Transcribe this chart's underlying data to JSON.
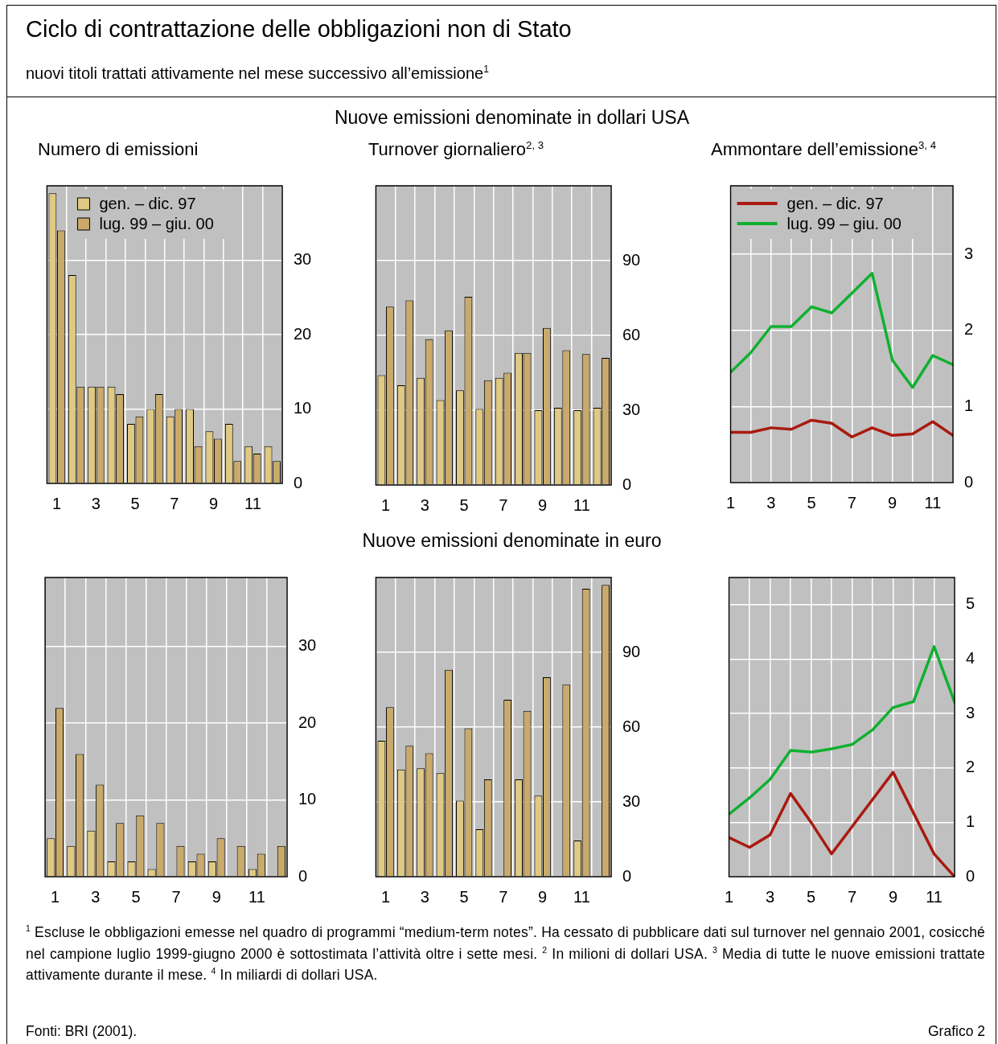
{
  "chart_data": [
    {
      "type": "other",
      "title": "Ciclo di contrattazione delle obbligazioni non di Stato",
      "subtitle": "nuovi titoli trattati attivamente nel mese successivo all’emissione$^{1}$",
      "annotations": [
        "Nuove emissioni denominate in dollari USA",
        "Nuove emissioni denominate in euro",
        "$^{1}$ Escluse le obbligazioni emesse nel quadro di programmi “medium-term notes”. Ha cessato di pubblicare dati sul turnover nel gennaio 2001, cosicché nel campione luglio 1999-giugno 2000 è sottostimata l’attività oltre i sette mesi. $^{2}$ In milioni di dollari USA. $^{3}$ Media di tutte le nuove emissioni trattate attivamente durante il mese. $^{4}$ In miliardi di dollari USA.",
        "Fonti: BRI (2001).",
        "Grafico 2"
      ]
    },
    {
      "type": "bar",
      "title": "Numero di emissioni",
      "categories": [
        "1",
        null,
        "3",
        null,
        "5",
        null,
        "7",
        null,
        "9",
        null,
        "11",
        null
      ],
      "series": [
        {
          "name": "gen. – dic. 97",
          "color": "#e0c982",
          "values": [
            39,
            28,
            13,
            13,
            8,
            10,
            9,
            10,
            7,
            8,
            5,
            5
          ]
        },
        {
          "name": "lug. 99 – giu. 00",
          "color": "#c9aa6b",
          "values": [
            34,
            13,
            13,
            12,
            9,
            12,
            10,
            5,
            6,
            3,
            4,
            3
          ]
        }
      ],
      "ylim": [
        0,
        40
      ],
      "yticks": [
        0,
        10,
        20,
        30
      ],
      "grid": true,
      "legend": "top left"
    },
    {
      "type": "bar",
      "title": "Turnover giornaliero$^{2, 3}$",
      "categories": [
        "1",
        null,
        "3",
        null,
        "5",
        null,
        "7",
        null,
        "9",
        null,
        "11",
        null
      ],
      "series": [
        {
          "color": "#e0c982",
          "values": [
            44,
            40,
            43,
            34,
            38,
            30.5,
            43,
            53,
            30,
            31,
            30,
            31
          ]
        },
        {
          "color": "#c9aa6b",
          "values": [
            71.5,
            74,
            58.5,
            62,
            75.5,
            42,
            45,
            53,
            63,
            54,
            52.5,
            51
          ]
        }
      ],
      "ylim": [
        0,
        120
      ],
      "yticks": [
        0,
        30,
        60,
        90
      ],
      "grid": true
    },
    {
      "type": "line",
      "title": "Ammontare dell’emissione$^{3, 4}$",
      "x": [
        1,
        2,
        3,
        4,
        5,
        6,
        7,
        8,
        9,
        10,
        11,
        12
      ],
      "series": [
        {
          "name": "gen. – dic. 97",
          "color": "#a91a10",
          "values": [
            0.66,
            0.66,
            0.72,
            0.7,
            0.82,
            0.78,
            0.6,
            0.72,
            0.62,
            0.64,
            0.8,
            0.62
          ]
        },
        {
          "name": "lug. 99 – giu. 00",
          "color": "#10b030",
          "values": [
            1.45,
            1.71,
            2.05,
            2.05,
            2.31,
            2.23,
            2.49,
            2.75,
            1.61,
            1.25,
            1.67,
            1.55
          ]
        }
      ],
      "xlim": [
        1,
        12
      ],
      "xticks": [
        1,
        {
          "value": 2,
          "label": null
        },
        3,
        {
          "value": 4,
          "label": null
        },
        5,
        {
          "value": 6,
          "label": null
        },
        7,
        {
          "value": 8,
          "label": null
        },
        9,
        {
          "value": 10,
          "label": null
        },
        11,
        {
          "value": 12,
          "label": null
        }
      ],
      "ylim": [
        0,
        3.9
      ],
      "yticks": [
        0,
        1,
        2,
        3
      ],
      "grid": true,
      "legend": "top left"
    },
    {
      "type": "bar",
      "categories": [
        "1",
        null,
        "3",
        null,
        "5",
        null,
        "7",
        null,
        "9",
        null,
        "11",
        null
      ],
      "series": [
        {
          "color": "#e0c982",
          "values": [
            5,
            4,
            6,
            2,
            2,
            1,
            0,
            2,
            2,
            0,
            1,
            0
          ]
        },
        {
          "color": "#c9aa6b",
          "values": [
            22,
            16,
            12,
            7,
            8,
            7,
            4,
            3,
            5,
            4,
            3,
            4
          ]
        }
      ],
      "ylim": [
        0,
        39
      ],
      "yticks": [
        0,
        10,
        20,
        30
      ],
      "grid": true
    },
    {
      "type": "bar",
      "categories": [
        "1",
        null,
        "3",
        null,
        "5",
        null,
        "7",
        null,
        "9",
        null,
        "11",
        null
      ],
      "series": [
        {
          "color": "#e0c982",
          "values": [
            54.5,
            43,
            43.5,
            41.5,
            30.5,
            19,
            0,
            39,
            32.5,
            0,
            14.5,
            0
          ]
        },
        {
          "color": "#c9aa6b",
          "values": [
            68,
            52.5,
            49.5,
            83,
            59.5,
            39,
            71,
            66.5,
            80,
            77,
            115.5,
            117
          ]
        }
      ],
      "ylim": [
        0,
        120
      ],
      "yticks": [
        0,
        30,
        60,
        90
      ],
      "grid": true
    },
    {
      "type": "line",
      "x": [
        1,
        2,
        3,
        4,
        5,
        6,
        7,
        8,
        9,
        10,
        11,
        12
      ],
      "series": [
        {
          "color": "#a91a10",
          "values": [
            0.72,
            0.54,
            0.77,
            1.53,
            1,
            0.42,
            0.92,
            1.42,
            1.92,
            1.17,
            0.42,
            0
          ]
        },
        {
          "color": "#10b030",
          "values": [
            1.15,
            1.45,
            1.79,
            2.32,
            2.29,
            2.35,
            2.43,
            2.7,
            3.11,
            3.22,
            4.23,
            3.21
          ]
        }
      ],
      "xlim": [
        1,
        12
      ],
      "xticks": [
        1,
        {
          "value": 2,
          "label": null
        },
        3,
        {
          "value": 4,
          "label": null
        },
        5,
        {
          "value": 6,
          "label": null
        },
        7,
        {
          "value": 8,
          "label": null
        },
        9,
        {
          "value": 10,
          "label": null
        },
        11,
        {
          "value": 12,
          "label": null
        }
      ],
      "ylim": [
        0,
        5.5
      ],
      "yticks": [
        0,
        1,
        2,
        3,
        4,
        5
      ],
      "grid": true
    }
  ]
}
